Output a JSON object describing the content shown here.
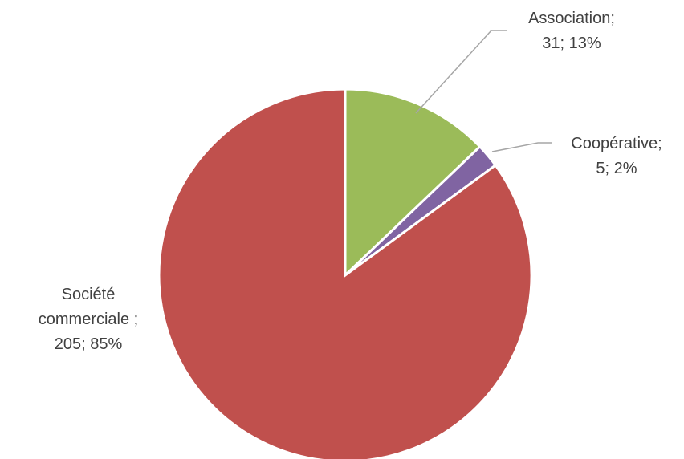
{
  "chart_data": {
    "type": "pie",
    "title": "",
    "start_angle_deg": 0,
    "direction": "clockwise",
    "legend": "none",
    "slices": [
      {
        "name": "Association",
        "value": 31,
        "percent": 13,
        "color": "#9bbb59",
        "label_lines": [
          "Association;",
          "31; 13%"
        ]
      },
      {
        "name": "Coopérative",
        "value": 5,
        "percent": 2,
        "color": "#8064a2",
        "label_lines": [
          "Coopérative;",
          "5; 2%"
        ]
      },
      {
        "name": "Société commerciale",
        "value": 205,
        "percent": 85,
        "color": "#c0504d",
        "label_lines": [
          "Société",
          "commerciale ;",
          "205; 85%"
        ]
      }
    ]
  }
}
